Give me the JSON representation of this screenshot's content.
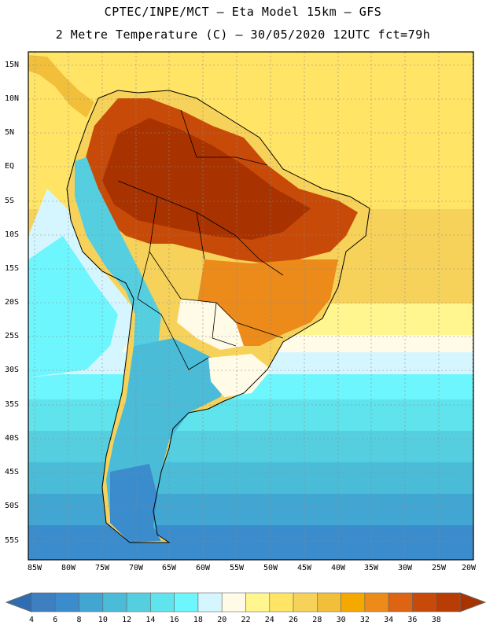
{
  "header": {
    "line1": "CPTEC/INPE/MCT –  Eta Model 15km – GFS",
    "line2": "2 Metre Temperature (C) – 30/05/2020 12UTC fct=79h"
  },
  "map": {
    "region": "South America",
    "variable": "2 Metre Temperature",
    "units": "C",
    "lat_labels": [
      "15N",
      "10N",
      "5N",
      "EQ",
      "5S",
      "10S",
      "15S",
      "20S",
      "25S",
      "30S",
      "35S",
      "40S",
      "45S",
      "50S",
      "55S"
    ],
    "lon_labels": [
      "85W",
      "80W",
      "75W",
      "70W",
      "65W",
      "60W",
      "55W",
      "50W",
      "45W",
      "40W",
      "35W",
      "30W",
      "25W",
      "20W"
    ]
  },
  "colorbar": {
    "labels": [
      "4",
      "6",
      "8",
      "10",
      "12",
      "14",
      "16",
      "18",
      "20",
      "22",
      "24",
      "26",
      "28",
      "30",
      "32",
      "34",
      "36",
      "38"
    ],
    "colors": [
      "#3d7fc0",
      "#3a8ccc",
      "#42a6d2",
      "#4bbcd8",
      "#55cfe0",
      "#5fe3ec",
      "#6ef6ff",
      "#d6f6ff",
      "#fffbe6",
      "#fff68f",
      "#ffe465",
      "#f7d25a",
      "#f2bf3a",
      "#f5a800",
      "#ec8a1a",
      "#dc6412",
      "#c84a08",
      "#b83c04"
    ],
    "low_color": "#2f6db3",
    "high_color": "#a83200"
  }
}
